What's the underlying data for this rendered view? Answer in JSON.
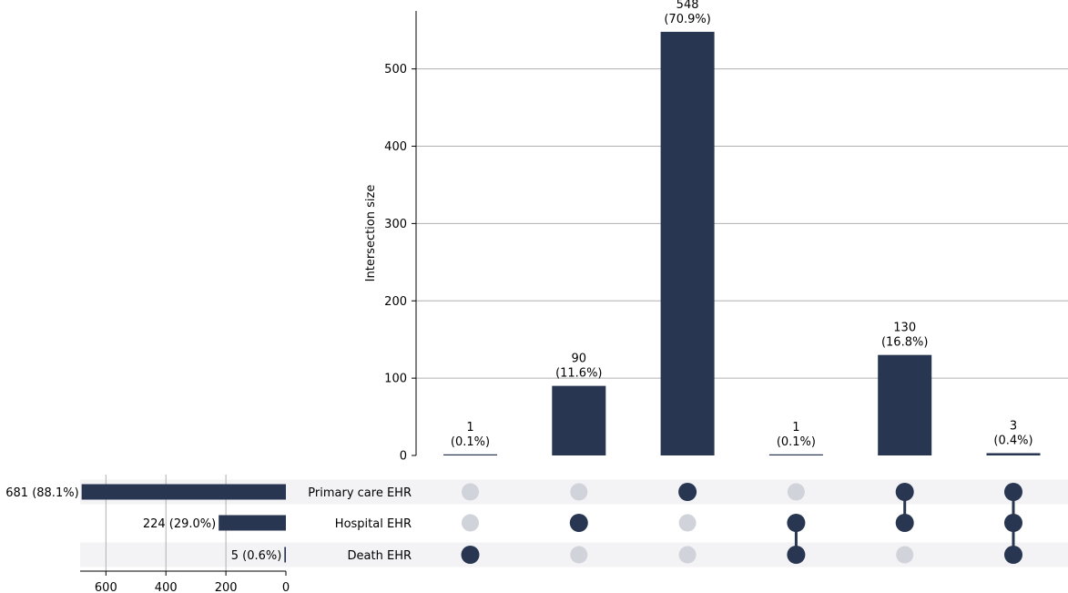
{
  "chart_data": {
    "type": "upset",
    "ylabel": "Intersection size",
    "intersection_yticks": [
      0,
      100,
      200,
      300,
      400,
      500
    ],
    "intersection_ylim": [
      0,
      575
    ],
    "set_size_xticks": [
      600,
      400,
      200,
      0
    ],
    "set_size_xlim": [
      686,
      0
    ],
    "grid": true,
    "colors": {
      "bar": "#283651",
      "dot_active": "#283651",
      "dot_inactive": "#d1d3da",
      "row_shade": "#f3f3f5",
      "grid": "#b0b0b0"
    },
    "sets": [
      {
        "name": "Primary care EHR",
        "size": 681,
        "label": "681 (88.1%)"
      },
      {
        "name": "Hospital EHR",
        "size": 224,
        "label": "224 (29.0%)"
      },
      {
        "name": "Death EHR",
        "size": 5,
        "label": "5 (0.6%)"
      }
    ],
    "intersections": [
      {
        "members": [
          0,
          0,
          1
        ],
        "value": 1,
        "label": "1\n(0.1%)"
      },
      {
        "members": [
          0,
          1,
          0
        ],
        "value": 90,
        "label": "90\n(11.6%)"
      },
      {
        "members": [
          1,
          0,
          0
        ],
        "value": 548,
        "label": "548\n(70.9%)"
      },
      {
        "members": [
          0,
          1,
          1
        ],
        "value": 1,
        "label": "1\n(0.1%)"
      },
      {
        "members": [
          1,
          1,
          0
        ],
        "value": 130,
        "label": "130\n(16.8%)"
      },
      {
        "members": [
          1,
          1,
          1
        ],
        "value": 3,
        "label": "3\n(0.4%)"
      }
    ]
  }
}
